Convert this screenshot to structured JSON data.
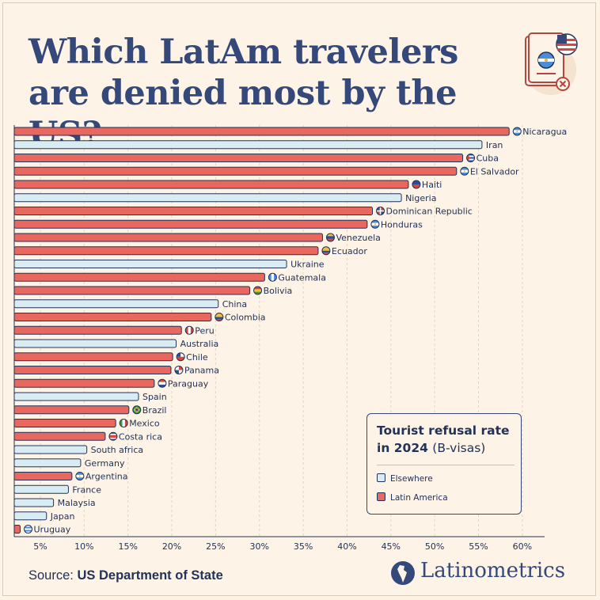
{
  "title": "Which LatAm travelers are denied most by the US?",
  "legend": {
    "title_bold": "Tourist refusal rate in 2024",
    "title_thin": "(B-visas)",
    "items": [
      {
        "label": "Elsewhere",
        "color": "#d9ecf4"
      },
      {
        "label": "Latin America",
        "color": "#e8675f"
      }
    ]
  },
  "source": {
    "label": "Source:",
    "value": "US Department of State"
  },
  "brand": "Latinometrics",
  "chart_data": {
    "type": "bar",
    "orientation": "horizontal",
    "xlim": [
      2.2,
      62
    ],
    "x_ticks": [
      5,
      10,
      15,
      20,
      25,
      30,
      35,
      40,
      45,
      50,
      55,
      60
    ],
    "x_tick_labels": [
      "5%",
      "10%",
      "15%",
      "20%",
      "25%",
      "30%",
      "35%",
      "40%",
      "45%",
      "50%",
      "55%",
      "60%"
    ],
    "grid": "vertical dashed",
    "bars": [
      {
        "label": "Nicaragua",
        "value": 58.5,
        "group": "Latin America",
        "flag": "nicaragua"
      },
      {
        "label": "Iran",
        "value": 55.4,
        "group": "Elsewhere",
        "flag": ""
      },
      {
        "label": "Cuba",
        "value": 53.2,
        "group": "Latin America",
        "flag": "cuba"
      },
      {
        "label": "El Salvador",
        "value": 52.5,
        "group": "Latin America",
        "flag": "el-salvador"
      },
      {
        "label": "Haiti",
        "value": 47.0,
        "group": "Latin America",
        "flag": "haiti"
      },
      {
        "label": "Nigeria",
        "value": 46.2,
        "group": "Elsewhere",
        "flag": ""
      },
      {
        "label": "Dominican Republic",
        "value": 42.9,
        "group": "Latin America",
        "flag": "dominican-republic"
      },
      {
        "label": "Honduras",
        "value": 42.3,
        "group": "Latin America",
        "flag": "honduras"
      },
      {
        "label": "Venezuela",
        "value": 37.2,
        "group": "Latin America",
        "flag": "venezuela"
      },
      {
        "label": "Ecuador",
        "value": 36.7,
        "group": "Latin America",
        "flag": "ecuador"
      },
      {
        "label": "Ukraine",
        "value": 33.1,
        "group": "Elsewhere",
        "flag": ""
      },
      {
        "label": "Guatemala",
        "value": 30.6,
        "group": "Latin America",
        "flag": "guatemala"
      },
      {
        "label": "Bolivia",
        "value": 28.9,
        "group": "Latin America",
        "flag": "bolivia"
      },
      {
        "label": "China",
        "value": 25.3,
        "group": "Elsewhere",
        "flag": ""
      },
      {
        "label": "Colombia",
        "value": 24.5,
        "group": "Latin America",
        "flag": "colombia"
      },
      {
        "label": "Peru",
        "value": 21.1,
        "group": "Latin America",
        "flag": "peru"
      },
      {
        "label": "Australia",
        "value": 20.5,
        "group": "Elsewhere",
        "flag": ""
      },
      {
        "label": "Chile",
        "value": 20.1,
        "group": "Latin America",
        "flag": "chile"
      },
      {
        "label": "Panama",
        "value": 19.9,
        "group": "Latin America",
        "flag": "panama"
      },
      {
        "label": "Paraguay",
        "value": 18.0,
        "group": "Latin America",
        "flag": "paraguay"
      },
      {
        "label": "Spain",
        "value": 16.2,
        "group": "Elsewhere",
        "flag": ""
      },
      {
        "label": "Brazil",
        "value": 15.1,
        "group": "Latin America",
        "flag": "brazil"
      },
      {
        "label": "Mexico",
        "value": 13.6,
        "group": "Latin America",
        "flag": "mexico"
      },
      {
        "label": "Costa rica",
        "value": 12.4,
        "group": "Latin America",
        "flag": "costa-rica"
      },
      {
        "label": "South africa",
        "value": 10.3,
        "group": "Elsewhere",
        "flag": ""
      },
      {
        "label": "Germany",
        "value": 9.6,
        "group": "Elsewhere",
        "flag": ""
      },
      {
        "label": "Argentina",
        "value": 8.6,
        "group": "Latin America",
        "flag": "argentina"
      },
      {
        "label": "France",
        "value": 8.2,
        "group": "Elsewhere",
        "flag": ""
      },
      {
        "label": "Malaysia",
        "value": 6.5,
        "group": "Elsewhere",
        "flag": ""
      },
      {
        "label": "Japan",
        "value": 5.7,
        "group": "Elsewhere",
        "flag": ""
      },
      {
        "label": "Uruguay",
        "value": 2.7,
        "group": "Latin America",
        "flag": "uruguay"
      }
    ]
  }
}
